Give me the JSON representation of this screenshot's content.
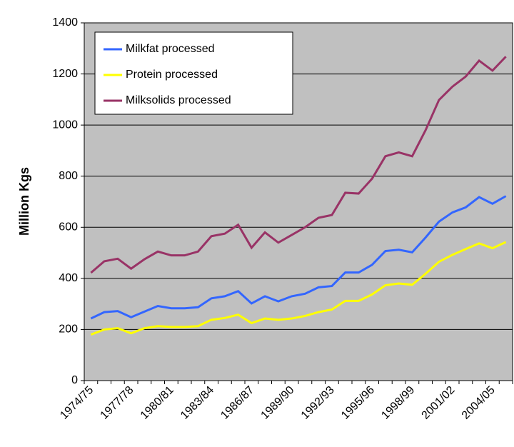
{
  "chart_data": {
    "type": "line",
    "y_label": "Million Kgs",
    "categories": [
      "1974/75",
      null,
      null,
      "1977/78",
      null,
      null,
      "1980/81",
      null,
      null,
      "1983/84",
      null,
      null,
      "1986/87",
      null,
      null,
      "1989/90",
      null,
      null,
      "1992/93",
      null,
      null,
      "1995/96",
      null,
      null,
      "1998/99",
      null,
      null,
      "2001/02",
      null,
      null,
      "2004/05",
      null
    ],
    "series": [
      {
        "name": "Milkfat processed",
        "color": "#3366ff",
        "values": [
          243,
          268,
          272,
          248,
          270,
          292,
          283,
          283,
          287,
          322,
          330,
          350,
          302,
          330,
          310,
          330,
          340,
          365,
          370,
          423,
          423,
          453,
          507,
          512,
          502,
          560,
          622,
          658,
          678,
          718,
          692,
          722
        ]
      },
      {
        "name": "Protein processed",
        "color": "#ffff00",
        "values": [
          180,
          200,
          205,
          185,
          205,
          213,
          210,
          210,
          213,
          238,
          245,
          258,
          225,
          243,
          238,
          243,
          253,
          268,
          278,
          312,
          312,
          337,
          373,
          380,
          375,
          418,
          465,
          492,
          515,
          537,
          518,
          542
        ]
      },
      {
        "name": "Milksolids processed",
        "color": "#993366",
        "values": [
          422,
          467,
          477,
          438,
          475,
          505,
          490,
          490,
          505,
          565,
          575,
          610,
          520,
          580,
          540,
          570,
          600,
          637,
          648,
          735,
          732,
          790,
          878,
          893,
          878,
          980,
          1098,
          1150,
          1190,
          1252,
          1213,
          1268
        ]
      }
    ],
    "ylim": [
      0,
      1400
    ],
    "yticks": [
      0,
      200,
      400,
      600,
      800,
      1000,
      1200,
      1400
    ],
    "grid": true,
    "legend": "top-left",
    "background": "#c0c0c0"
  }
}
